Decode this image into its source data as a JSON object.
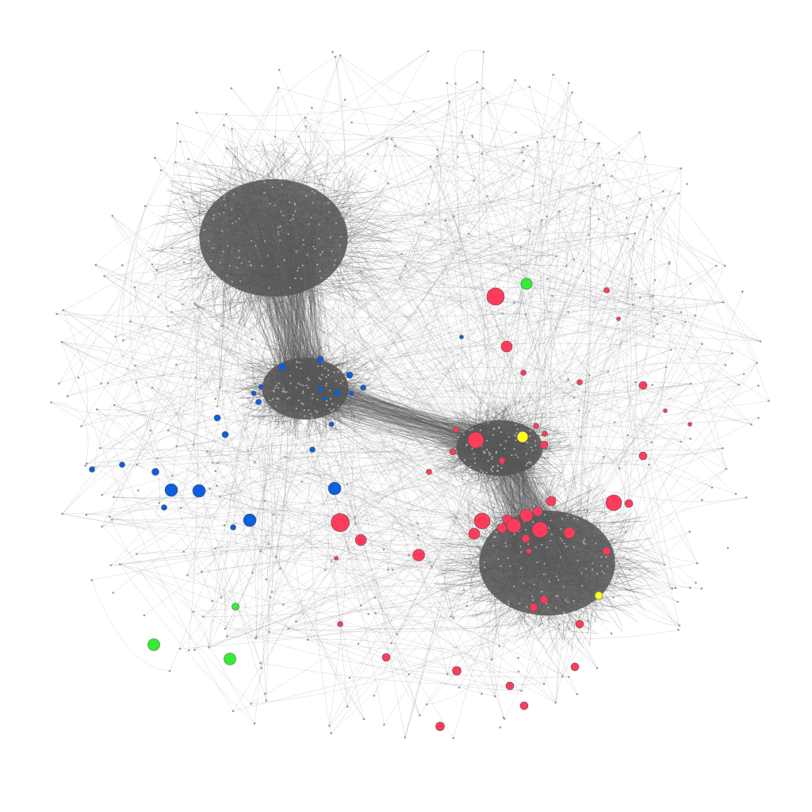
{
  "diagram": {
    "type": "network-graph",
    "title": "",
    "background": "#ffffff",
    "edge_color": "#555555",
    "hub_node_color": "#9a9a9a",
    "node_stroke": "#555555",
    "clusters": [
      "cluster-upper-left",
      "cluster-middle-left",
      "cluster-center-right",
      "cluster-lower-right"
    ],
    "highlight_groups": [
      {
        "id": "red",
        "color": "#ff3b5c",
        "count": 46
      },
      {
        "id": "blue",
        "color": "#0b5fe0",
        "count": 22
      },
      {
        "id": "green",
        "color": "#33ee33",
        "count": 4
      },
      {
        "id": "yellow",
        "color": "#ffff1a",
        "count": 2
      }
    ]
  }
}
